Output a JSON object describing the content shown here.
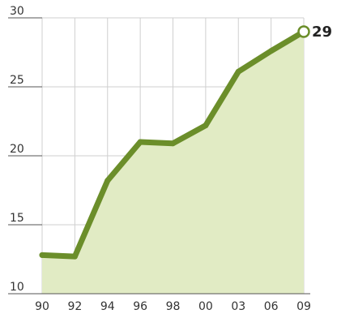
{
  "chart_data": {
    "type": "area",
    "categories": [
      "90",
      "92",
      "94",
      "96",
      "98",
      "00",
      "03",
      "06",
      "09"
    ],
    "values": [
      12.8,
      12.7,
      18.2,
      21.0,
      20.9,
      22.2,
      26.1,
      27.6,
      29.0
    ],
    "end_label": "29",
    "ylim": [
      10,
      30
    ],
    "yticks": [
      10,
      15,
      20,
      25,
      30
    ],
    "grid": true,
    "colors": {
      "line": "#6b8e2a",
      "fill": "#e1ebc4",
      "grid": "#cfcfcf",
      "axis": "#555555",
      "end_marker_fill": "#ffffff"
    }
  }
}
